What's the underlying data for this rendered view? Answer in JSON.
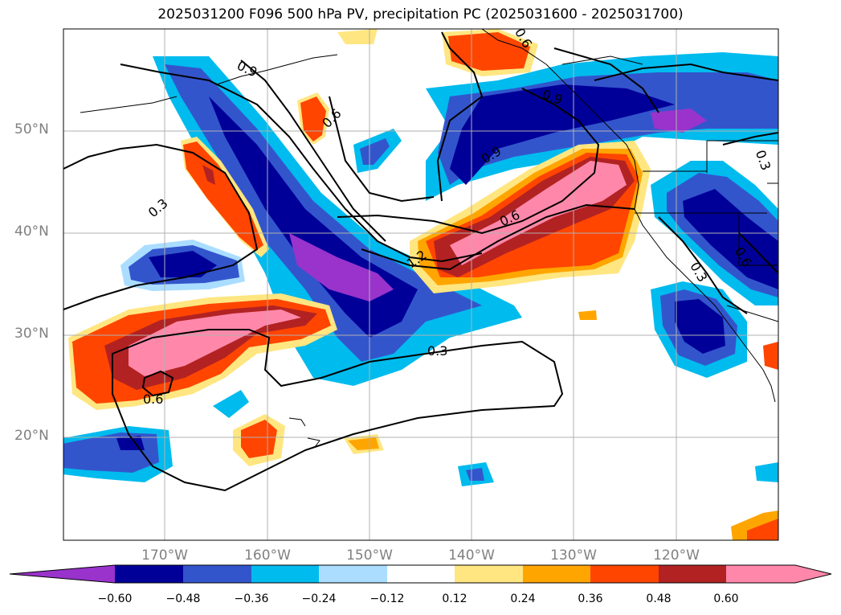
{
  "title": "2025031200 F096 500 hPa PV, precipitation PC (2025031600 - 2025031700)",
  "latitude_labels": [
    "50°N",
    "40°N",
    "30°N",
    "20°N"
  ],
  "longitude_labels": [
    "170°W",
    "160°W",
    "150°W",
    "140°W",
    "130°W",
    "120°W"
  ],
  "contour_labels": [
    "0.3",
    "0.6",
    "0.9",
    "1.2",
    "0.6",
    "0.9",
    "0.3",
    "0.6",
    "0.6",
    "0.3",
    "0.3",
    "0.6",
    "0.9"
  ],
  "colorbar": {
    "tick_labels": [
      "−0.60",
      "−0.48",
      "−0.36",
      "−0.24",
      "−0.12",
      "0.12",
      "0.24",
      "0.36",
      "0.48",
      "0.60"
    ],
    "colors": [
      "#9933cc",
      "#000099",
      "#3355cc",
      "#00bbee",
      "#aaddff",
      "#ffffff",
      "#ffe680",
      "#ffa500",
      "#ff4500",
      "#b22222",
      "#ff88aa"
    ]
  }
}
